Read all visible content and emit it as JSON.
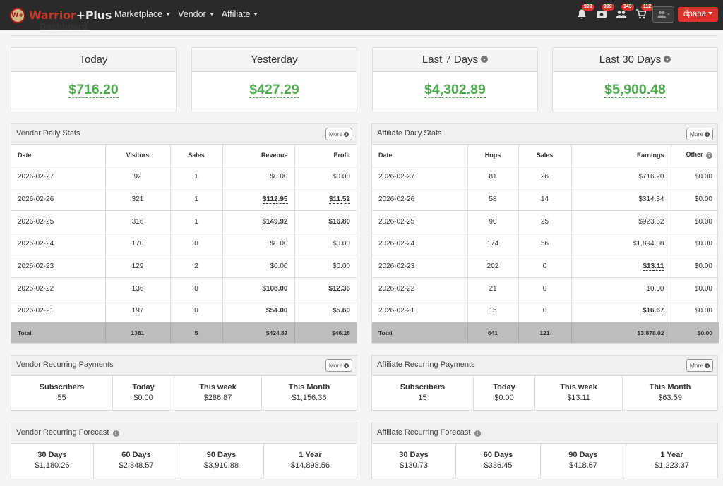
{
  "nav": {
    "brand_prefix": "Warrior",
    "brand_suffix": "+Plus",
    "logo_mark": "W+",
    "menu": [
      "Marketplace",
      "Vendor",
      "Affiliate"
    ],
    "ghost_title": "Dashboard",
    "icons": [
      {
        "name": "bell-icon",
        "badge": "999"
      },
      {
        "name": "money-icon",
        "badge": "999"
      },
      {
        "name": "users-icon",
        "badge": "343"
      },
      {
        "name": "cart-icon",
        "badge": "112"
      }
    ],
    "user": "dpapa"
  },
  "stats": [
    {
      "label": "Today",
      "value": "$716.20",
      "dropdown": false
    },
    {
      "label": "Yesterday",
      "value": "$427.29",
      "dropdown": false
    },
    {
      "label": "Last 7 Days",
      "value": "$4,302.89",
      "dropdown": true
    },
    {
      "label": "Last 30 Days",
      "value": "$5,900.48",
      "dropdown": true
    }
  ],
  "vendor_daily": {
    "title": "Vendor Daily Stats",
    "more": "More",
    "headers": [
      "Date",
      "Visitors",
      "Sales",
      "Revenue",
      "Profit"
    ],
    "rows": [
      [
        "2026-02-27",
        "92",
        "1",
        "$0.00",
        "$0.00"
      ],
      [
        "2026-02-26",
        "321",
        "1",
        "$112.95",
        "$11.52"
      ],
      [
        "2026-02-25",
        "316",
        "1",
        "$149.92",
        "$16.80"
      ],
      [
        "2026-02-24",
        "170",
        "0",
        "$0.00",
        "$0.00"
      ],
      [
        "2026-02-23",
        "129",
        "2",
        "$0.00",
        "$0.00"
      ],
      [
        "2026-02-22",
        "136",
        "0",
        "$108.00",
        "$12.36"
      ],
      [
        "2026-02-21",
        "197",
        "0",
        "$54.00",
        "$5.60"
      ]
    ],
    "total": [
      "Total",
      "1361",
      "5",
      "$424.87",
      "$46.28"
    ]
  },
  "affiliate_daily": {
    "title": "Affiliate Daily Stats",
    "more": "More",
    "headers": [
      "Date",
      "Hops",
      "Sales",
      "Earnings",
      "Other"
    ],
    "rows": [
      [
        "2026-02-27",
        "81",
        "26",
        "$716.20",
        "$0.00"
      ],
      [
        "2026-02-26",
        "58",
        "14",
        "$314.34",
        "$0.00"
      ],
      [
        "2026-02-25",
        "90",
        "25",
        "$923.62",
        "$0.00"
      ],
      [
        "2026-02-24",
        "174",
        "56",
        "$1,894.08",
        "$0.00"
      ],
      [
        "2026-02-23",
        "202",
        "0",
        "$13.11",
        "$0.00"
      ],
      [
        "2026-02-22",
        "21",
        "0",
        "$0.00",
        "$0.00"
      ],
      [
        "2026-02-21",
        "15",
        "0",
        "$16.67",
        "$0.00"
      ]
    ],
    "total": [
      "Total",
      "641",
      "121",
      "$3,878.02",
      "$0.00"
    ]
  },
  "vendor_recurring": {
    "title": "Vendor Recurring Payments",
    "more": "More",
    "labels": [
      "Subscribers",
      "Today",
      "This week",
      "This Month"
    ],
    "values": [
      "55",
      "$0.00",
      "$286.87",
      "$1,156.36"
    ]
  },
  "affiliate_recurring": {
    "title": "Affiliate Recurring Payments",
    "more": "More",
    "labels": [
      "Subscribers",
      "Today",
      "This week",
      "This Month"
    ],
    "values": [
      "15",
      "$0.00",
      "$13.11",
      "$63.59"
    ]
  },
  "vendor_forecast": {
    "title": "Vendor Recurring Forecast",
    "labels": [
      "30 Days",
      "60 Days",
      "90 Days",
      "1 Year"
    ],
    "values": [
      "$1,180.26",
      "$2,348.57",
      "$3,910.88",
      "$14,898.56"
    ]
  },
  "affiliate_forecast": {
    "title": "Affiliate Recurring Forecast",
    "labels": [
      "30 Days",
      "60 Days",
      "90 Days",
      "1 Year"
    ],
    "values": [
      "$130.73",
      "$336.45",
      "$418.67",
      "$1,223.37"
    ]
  },
  "colors": {
    "accent_green": "#4cae4c",
    "brand_red": "#d9342b",
    "navbar": "#2a2a2a"
  }
}
